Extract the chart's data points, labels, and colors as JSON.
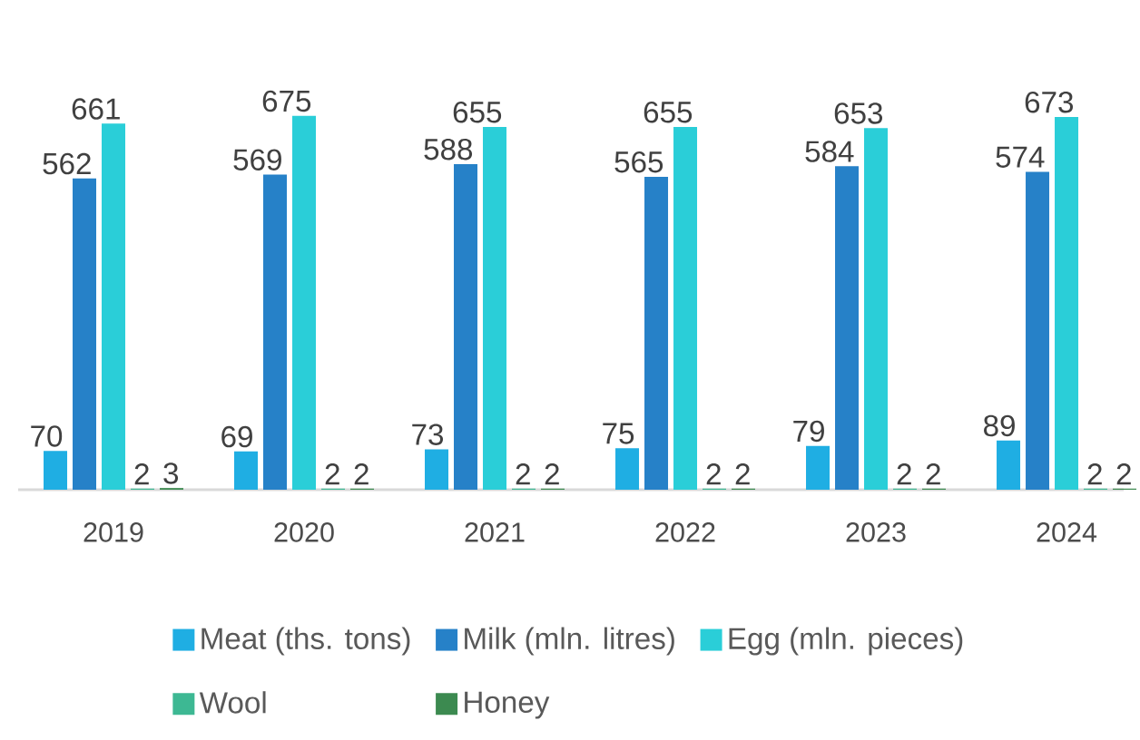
{
  "chart_data": {
    "type": "bar",
    "categories": [
      "2019",
      "2020",
      "2021",
      "2022",
      "2023",
      "2024"
    ],
    "series": [
      {
        "name": "Meat (ths. tons)",
        "color": "#1faee3",
        "values": [
          70,
          69,
          73,
          75,
          79,
          89
        ]
      },
      {
        "name": "Milk (mln. litres)",
        "color": "#2681c8",
        "values": [
          562,
          569,
          588,
          565,
          584,
          574
        ]
      },
      {
        "name": "Egg (mln. pieces)",
        "color": "#2aced8",
        "values": [
          661,
          675,
          655,
          655,
          653,
          673
        ]
      },
      {
        "name": "Wool",
        "color": "#3db893",
        "values": [
          2,
          2,
          2,
          2,
          2,
          2
        ]
      },
      {
        "name": "Honey",
        "color": "#3c8a50",
        "values": [
          3,
          2,
          2,
          2,
          2,
          2
        ]
      }
    ],
    "data_labels": true,
    "legend": "bottom"
  }
}
